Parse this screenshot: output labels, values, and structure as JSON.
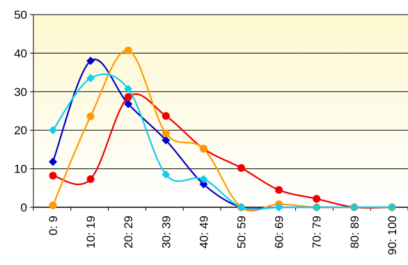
{
  "chart_data": {
    "type": "line",
    "title": "",
    "xlabel": "",
    "ylabel": "",
    "categories": [
      "0: 9",
      "10: 19",
      "20: 29",
      "30: 39",
      "40: 49",
      "50: 59",
      "60: 69",
      "70: 79",
      "80: 89",
      "90: 100"
    ],
    "ylim": [
      0,
      50
    ],
    "yticks": [
      0,
      10,
      20,
      30,
      40,
      50
    ],
    "grid": true,
    "legend": "none",
    "plot_background": {
      "top": "#fdf8cf",
      "bottom": "#ffffff"
    },
    "series": [
      {
        "color": "#0000cc",
        "marker": "diamond",
        "values": [
          11.8,
          38.0,
          26.8,
          17.4,
          6.0,
          0,
          0,
          0,
          0,
          0
        ]
      },
      {
        "color": "#ee0000",
        "marker": "circle",
        "values": [
          8.2,
          7.3,
          28.6,
          23.7,
          15.2,
          10.2,
          4.5,
          2.2,
          0,
          0
        ]
      },
      {
        "color": "#ff9900",
        "marker": "circle",
        "values": [
          0.5,
          23.6,
          40.7,
          19.2,
          15.2,
          0,
          0.8,
          0,
          0,
          0
        ]
      },
      {
        "color": "#11ccee",
        "marker": "diamond",
        "values": [
          20.0,
          33.5,
          30.7,
          8.5,
          7.3,
          0,
          0,
          0,
          0,
          0
        ]
      }
    ]
  }
}
